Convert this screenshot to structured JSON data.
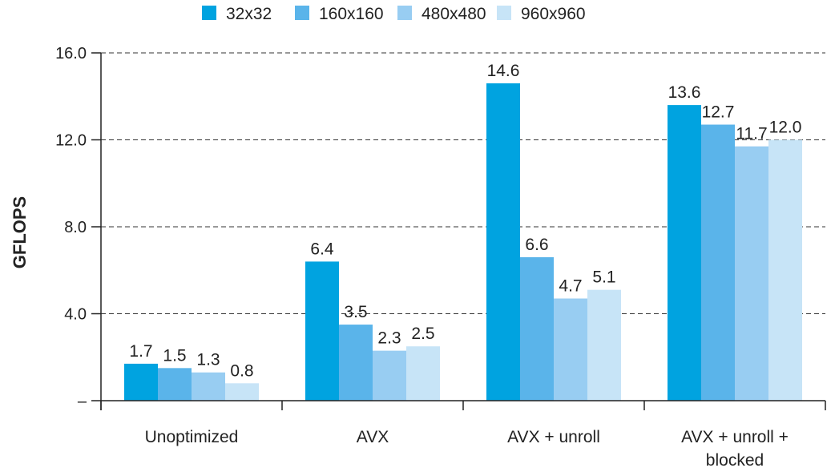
{
  "chart_data": {
    "type": "bar",
    "ylabel": "GFLOPS",
    "xlabel": "",
    "ylim": [
      0,
      16
    ],
    "yticks": [
      {
        "value": 0,
        "label": "–"
      },
      {
        "value": 4,
        "label": "4.0"
      },
      {
        "value": 8,
        "label": "8.0"
      },
      {
        "value": 12,
        "label": "12.0"
      },
      {
        "value": 16,
        "label": "16.0"
      }
    ],
    "grid": "horizontal dashed",
    "legend": "top",
    "categories": [
      [
        "Unoptimized"
      ],
      [
        "AVX"
      ],
      [
        "AVX + unroll"
      ],
      [
        "AVX + unroll +",
        "blocked"
      ]
    ],
    "series": [
      {
        "name": "32x32",
        "color": "#00a3e0",
        "values": [
          1.7,
          6.4,
          14.6,
          13.6
        ],
        "labels": [
          "1.7",
          "6.4",
          "14.6",
          "13.6"
        ]
      },
      {
        "name": "160x160",
        "color": "#5ab4ea",
        "values": [
          1.5,
          3.5,
          6.6,
          12.7
        ],
        "labels": [
          "1.5",
          "3.5",
          "6.6",
          "12.7"
        ]
      },
      {
        "name": "480x480",
        "color": "#98cdf2",
        "values": [
          1.3,
          2.3,
          4.7,
          11.7
        ],
        "labels": [
          "1.3",
          "2.3",
          "4.7",
          "11.7"
        ]
      },
      {
        "name": "960x960",
        "color": "#c7e4f7",
        "values": [
          0.8,
          2.5,
          5.1,
          12.0
        ],
        "labels": [
          "0.8",
          "2.5",
          "5.1",
          "12.0"
        ]
      }
    ]
  }
}
